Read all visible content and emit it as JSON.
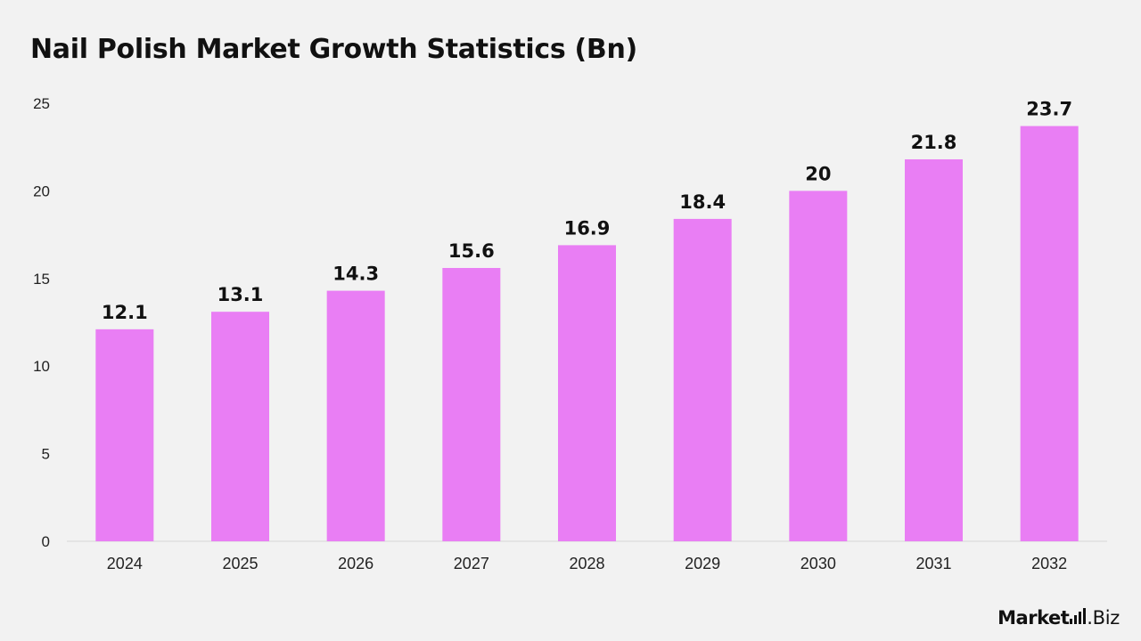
{
  "chart_data": {
    "type": "bar",
    "title": "Nail Polish Market Growth Statistics (Bn)",
    "categories": [
      "2024",
      "2025",
      "2026",
      "2027",
      "2028",
      "2029",
      "2030",
      "2031",
      "2032"
    ],
    "values": [
      12.1,
      13.1,
      14.3,
      15.6,
      16.9,
      18.4,
      20,
      21.8,
      23.7
    ],
    "value_labels": [
      "12.1",
      "13.1",
      "14.3",
      "15.6",
      "16.9",
      "18.4",
      "20",
      "21.8",
      "23.7"
    ],
    "ylim": [
      0,
      25
    ],
    "yticks": [
      0,
      5,
      10,
      15,
      20,
      25
    ],
    "xlabel": "",
    "ylabel": "",
    "grid": false,
    "bar_color": "#e97ef4",
    "axis_color": "#d6d6d6"
  },
  "brand": {
    "name_bold": "Market",
    "name_light": ".Biz",
    "icon": "bar-chart-icon"
  }
}
